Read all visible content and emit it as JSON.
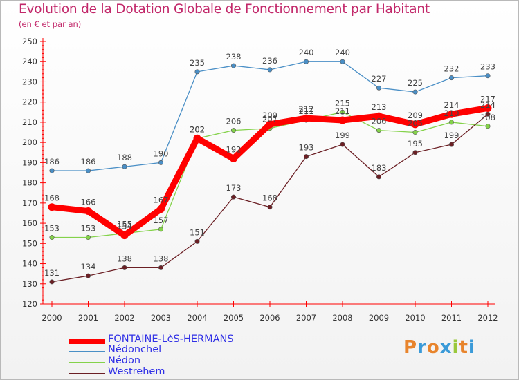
{
  "chart_data": {
    "type": "line",
    "title": "Evolution de la Dotation Globale de Fonctionnement par Habitant",
    "subtitle": "(en € et par an)",
    "xlabel": "",
    "ylabel": "",
    "ylim": [
      120,
      250
    ],
    "yticks": [
      120,
      130,
      140,
      150,
      160,
      170,
      180,
      190,
      200,
      210,
      220,
      230,
      240,
      250
    ],
    "categories": [
      "2000",
      "2001",
      "2002",
      "2003",
      "2004",
      "2005",
      "2006",
      "2007",
      "2008",
      "2009",
      "2010",
      "2011",
      "2012"
    ],
    "series": [
      {
        "name": "Nédonchel",
        "color": "#4a8fc6",
        "values": [
          186,
          186,
          188,
          190,
          235,
          238,
          236,
          240,
          240,
          227,
          225,
          232,
          233
        ]
      },
      {
        "name": "Nédon",
        "color": "#84d24a",
        "values": [
          153,
          153,
          155,
          157,
          202,
          206,
          207,
          211,
          215,
          206,
          205,
          210,
          208
        ]
      },
      {
        "name": "Westrehem",
        "color": "#6b1f24",
        "values": [
          131,
          134,
          138,
          138,
          151,
          173,
          168,
          193,
          199,
          183,
          195,
          199,
          214
        ]
      },
      {
        "name": "FONTAINE-LèS-HERMANS",
        "color": "#ff0000",
        "values": [
          168,
          166,
          154,
          167,
          202,
          192,
          209,
          212,
          211,
          213,
          209,
          214,
          217
        ]
      }
    ],
    "legend": [
      "FONTAINE-LèS-HERMANS",
      "Nédonchel",
      "Nédon",
      "Westrehem"
    ],
    "grid": false
  },
  "logo": {
    "text": "Proxiti",
    "colors": [
      "#e8842c",
      "#3a9ad8",
      "#e8842c",
      "#3a9ad8",
      "#9ac83c",
      "#e8842c",
      "#3a9ad8"
    ]
  }
}
